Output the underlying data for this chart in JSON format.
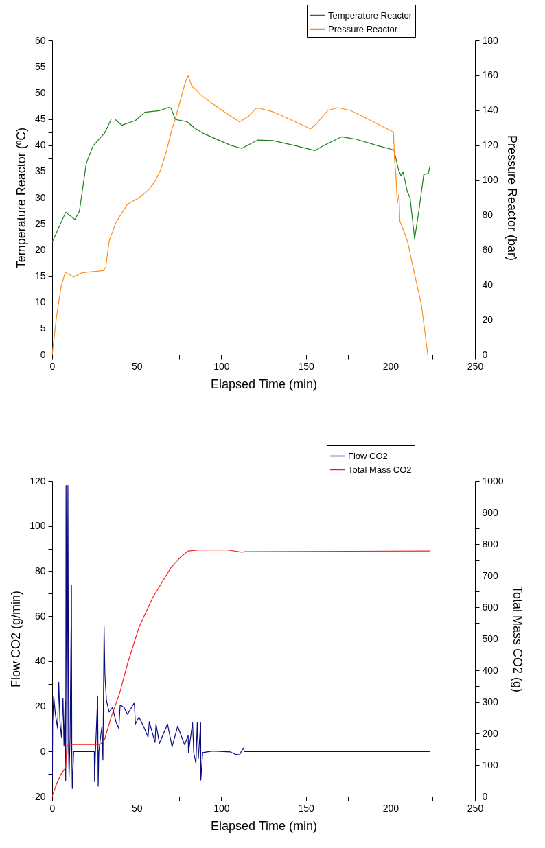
{
  "chart_data": [
    {
      "type": "line",
      "xlabel": "Elapsed Time (min)",
      "ylabel": "Temperature Reactor (ºC)",
      "y2label": "Pressure Reactor (bar)",
      "legend": "top right",
      "xlim": [
        0,
        250
      ],
      "xticks": [
        0,
        {
          "value": 25,
          "label": null
        },
        50,
        {
          "value": 75,
          "label": null
        },
        100,
        {
          "value": 125,
          "label": null
        },
        150,
        {
          "value": 175,
          "label": null
        },
        200,
        {
          "value": 225,
          "label": null
        },
        250
      ],
      "ylim": [
        0,
        60
      ],
      "yticks": [
        0,
        {
          "value": 2.5,
          "label": null
        },
        5,
        {
          "value": 7.5,
          "label": null
        },
        10,
        {
          "value": 12.5,
          "label": null
        },
        15,
        {
          "value": 17.5,
          "label": null
        },
        20,
        {
          "value": 22.5,
          "label": null
        },
        25,
        {
          "value": 27.5,
          "label": null
        },
        30,
        {
          "value": 32.5,
          "label": null
        },
        35,
        {
          "value": 37.5,
          "label": null
        },
        40,
        {
          "value": 42.5,
          "label": null
        },
        45,
        {
          "value": 47.5,
          "label": null
        },
        50,
        {
          "value": 52.5,
          "label": null
        },
        55,
        {
          "value": 57.5,
          "label": null
        },
        60
      ],
      "y2lim": [
        0,
        180
      ],
      "y2ticks": [
        0,
        {
          "value": 10,
          "label": null
        },
        20,
        {
          "value": 30,
          "label": null
        },
        40,
        {
          "value": 50,
          "label": null
        },
        60,
        {
          "value": 70,
          "label": null
        },
        80,
        {
          "value": 90,
          "label": null
        },
        100,
        {
          "value": 110,
          "label": null
        },
        120,
        {
          "value": 130,
          "label": null
        },
        140,
        {
          "value": 150,
          "label": null
        },
        160,
        {
          "value": 170,
          "label": null
        },
        180
      ],
      "series": [
        {
          "name": "Temperature Reactor",
          "color": "#1a7f1a",
          "x": [
            0,
            8,
            13.4,
            16.1,
            20.2,
            24.2,
            31,
            35,
            37,
            41.1,
            49.2,
            54.7,
            63.4,
            68.8,
            70.2,
            72.9,
            79.7,
            83.7,
            89.1,
            105.4,
            112.1,
            121.6,
            130.4,
            143.9,
            155.4,
            160.2,
            171,
            179.1,
            192.6,
            202.1,
            204.8,
            206.2,
            207.5,
            210,
            211.6,
            214.3,
            217,
            219.7,
            222.4,
            223.5
          ],
          "values": [
            21.5,
            27.2,
            25.8,
            27.4,
            36.6,
            39.9,
            42.3,
            45,
            45,
            43.8,
            44.7,
            46.3,
            46.6,
            47.2,
            47.1,
            44.9,
            44.5,
            43.4,
            42.3,
            40,
            39.4,
            41,
            40.9,
            39.9,
            39,
            39.9,
            41.6,
            41.2,
            39.9,
            39.1,
            35.3,
            34.2,
            34.9,
            31.1,
            30,
            22.1,
            27.9,
            34.4,
            34.6,
            36.2
          ]
        },
        {
          "name": "Pressure Reactor",
          "color": "#ff8c1a",
          "axis": "y2",
          "x": [
            0,
            2.6,
            5.3,
            7.7,
            12.7,
            17.5,
            30.3,
            31.7,
            33.7,
            37.7,
            44.5,
            51.3,
            56.7,
            60.8,
            64.1,
            67.5,
            70.9,
            72.9,
            75.6,
            79,
            80.4,
            82.6,
            85,
            87.8,
            98.6,
            110.8,
            116.2,
            120.3,
            122.3,
            130.4,
            143.9,
            152.7,
            156.1,
            162.9,
            168.9,
            176.4,
            187.2,
            201.8,
            202.4,
            203.2,
            204.1,
            205.1,
            205.6,
            207.5,
            210.2,
            212.9,
            215.6,
            218.3,
            220.4,
            222.1
          ],
          "values": [
            0,
            22,
            39,
            47.2,
            44.5,
            46.9,
            48.2,
            50.2,
            65.2,
            75.7,
            86.2,
            89.9,
            94.1,
            99.3,
            105.8,
            116.3,
            129.4,
            135.3,
            145.1,
            156.9,
            159.8,
            153.7,
            152,
            148.8,
            141.2,
            133.3,
            136.6,
            141,
            141.2,
            139.2,
            133.3,
            129.4,
            132.1,
            139.9,
            141.5,
            139.9,
            134.7,
            127.5,
            112.4,
            103.2,
            86.9,
            92.1,
            76.4,
            71.8,
            64.6,
            52.2,
            40.4,
            28.6,
            12.9,
            0
          ]
        }
      ]
    },
    {
      "type": "line",
      "xlabel": "Elapsed Time (min)",
      "ylabel": "Flow CO2 (g/min)",
      "y2label": "Total Mass CO2 (g)",
      "legend": "top right",
      "xlim": [
        0,
        250
      ],
      "xticks": [
        0,
        {
          "value": 25,
          "label": null
        },
        50,
        {
          "value": 75,
          "label": null
        },
        100,
        {
          "value": 125,
          "label": null
        },
        150,
        {
          "value": 175,
          "label": null
        },
        200,
        {
          "value": 225,
          "label": null
        },
        250
      ],
      "ylim": [
        -20,
        120
      ],
      "yticks": [
        -20,
        {
          "value": -10,
          "label": null
        },
        0,
        {
          "value": 10,
          "label": null
        },
        20,
        {
          "value": 30,
          "label": null
        },
        40,
        {
          "value": 50,
          "label": null
        },
        60,
        {
          "value": 70,
          "label": null
        },
        80,
        {
          "value": 90,
          "label": null
        },
        100,
        {
          "value": 110,
          "label": null
        },
        120
      ],
      "y2lim": [
        0,
        1000
      ],
      "y2ticks": [
        0,
        {
          "value": 50,
          "label": null
        },
        100,
        {
          "value": 150,
          "label": null
        },
        200,
        {
          "value": 250,
          "label": null
        },
        300,
        {
          "value": 350,
          "label": null
        },
        400,
        {
          "value": 450,
          "label": null
        },
        500,
        {
          "value": 550,
          "label": null
        },
        600,
        {
          "value": 650,
          "label": null
        },
        700,
        {
          "value": 750,
          "label": null
        },
        800,
        {
          "value": 850,
          "label": null
        },
        900,
        {
          "value": 950,
          "label": null
        },
        1000
      ],
      "series": [
        {
          "name": "Flow CO2",
          "color": "#0a0a80",
          "x": [
            0,
            0.14,
            0.3,
            0.9,
            1.9,
            3.2,
            3.9,
            4.6,
            5.5,
            6.4,
            7,
            7.6,
            8,
            8.2,
            8.8,
            9.3,
            9.7,
            10,
            10.6,
            11.4,
            11.6,
            11.9,
            12.7,
            24.9,
            25.1,
            25.6,
            26.9,
            27.2,
            27.6,
            29.4,
            30,
            30.7,
            31.2,
            32.1,
            33.7,
            35.7,
            37.7,
            39.4,
            40.2,
            42.5,
            44.5,
            48.6,
            49.2,
            51.3,
            54,
            56.7,
            57.4,
            60.8,
            61.4,
            63.4,
            68.2,
            70.9,
            74.2,
            78.3,
            80.4,
            80.6,
            83,
            83.7,
            85,
            85.8,
            86.4,
            87.8,
            87.9,
            89,
            94.7,
            105.5,
            108.2,
            110.8,
            112.9,
            113.8,
            223.5
          ],
          "values": [
            13,
            -12.7,
            13,
            24.6,
            16.5,
            10.4,
            30.7,
            13.2,
            6.4,
            23.6,
            2.3,
            22.1,
            -12.9,
            118,
            -1,
            118,
            1,
            -11,
            7.1,
            73.8,
            0,
            -16.4,
            0,
            0,
            -13.4,
            0,
            24.6,
            -15.4,
            0,
            11.2,
            -3.8,
            55.3,
            33.8,
            22.6,
            17.5,
            19.5,
            13.2,
            10.2,
            20.6,
            19.5,
            16.5,
            21.6,
            12.2,
            15.2,
            11.2,
            6.4,
            13.2,
            4,
            12.2,
            3.6,
            12.2,
            2,
            11.2,
            3,
            7.1,
            -0.5,
            12.7,
            -0.5,
            -5.3,
            12.7,
            -3.3,
            12.7,
            -12.7,
            -0.5,
            0.2,
            -0.2,
            -1.2,
            -1.5,
            1.5,
            0,
            0
          ]
        },
        {
          "name": "Total Mass CO2",
          "color": "#ff1a1a",
          "axis": "y2",
          "x": [
            0,
            2.6,
            5.3,
            8,
            8.6,
            10,
            12,
            28.3,
            31,
            35,
            39.8,
            44.5,
            51.3,
            59.4,
            70.2,
            75.6,
            80.4,
            86.4,
            104,
            112.1,
            114,
            223.5
          ],
          "values": [
            0,
            40,
            72,
            91,
            156,
            168,
            165,
            165,
            181,
            254,
            326,
            420,
            536,
            630,
            725,
            757,
            778,
            781,
            781,
            774,
            776,
            778
          ]
        }
      ]
    }
  ]
}
